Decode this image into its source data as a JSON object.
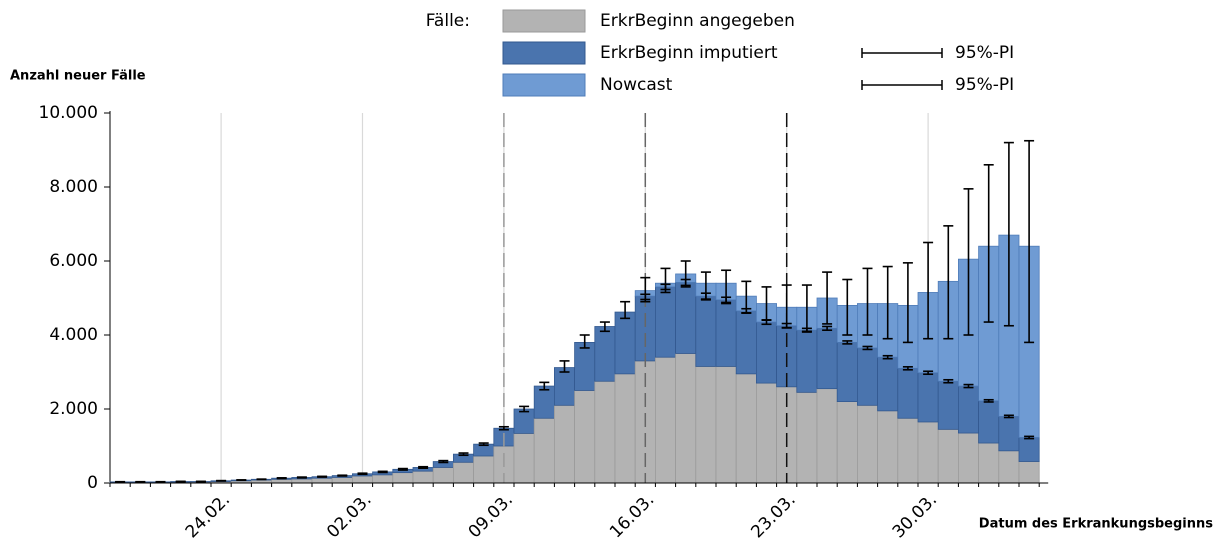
{
  "chart_data": {
    "type": "stacked_bar",
    "y_label": "Anzahl neuer Fälle",
    "x_label": "Datum des Erkrankungsbeginns",
    "legend_title": "Fälle:",
    "categories": [
      null,
      null,
      null,
      null,
      null,
      "24.02.",
      null,
      null,
      null,
      null,
      null,
      null,
      "02.03.",
      null,
      null,
      null,
      null,
      null,
      null,
      "09.03.",
      null,
      null,
      null,
      null,
      null,
      null,
      "16.03.",
      null,
      null,
      null,
      null,
      null,
      null,
      "23.03.",
      null,
      null,
      null,
      null,
      null,
      null,
      "30.03.",
      null,
      null,
      null,
      null,
      null
    ],
    "ylim": [
      0,
      10000
    ],
    "yticks": [
      0,
      {
        "value": 2000,
        "label": "2.000"
      },
      {
        "value": 4000,
        "label": "4.000"
      },
      {
        "value": 6000,
        "label": "6.000"
      },
      {
        "value": 8000,
        "label": "8.000"
      },
      {
        "value": 10000,
        "label": "10.000"
      }
    ],
    "grid": true,
    "series": [
      {
        "name": "ErkrBeginn angegeben",
        "color": "#b3b3b3",
        "values": [
          20,
          20,
          20,
          25,
          30,
          40,
          60,
          80,
          100,
          110,
          130,
          150,
          190,
          220,
          280,
          320,
          420,
          560,
          730,
          1000,
          1340,
          1750,
          2100,
          2500,
          2750,
          2950,
          3300,
          3400,
          3500,
          3150,
          3150,
          2950,
          2700,
          2600,
          2450,
          2550,
          2200,
          2100,
          1950,
          1750,
          1650,
          1450,
          1350,
          1080,
          870,
          580
        ]
      },
      {
        "name": "ErkrBeginn imputiert",
        "color": "#4a74ae",
        "pi_label": "95%-PI",
        "values": [
          10,
          10,
          10,
          15,
          10,
          20,
          20,
          20,
          30,
          40,
          40,
          50,
          60,
          80,
          90,
          100,
          160,
          220,
          320,
          480,
          660,
          870,
          1020,
          1300,
          1480,
          1670,
          1750,
          1900,
          1920,
          1900,
          1800,
          1700,
          1650,
          1650,
          1680,
          1630,
          1600,
          1550,
          1450,
          1350,
          1330,
          1300,
          1270,
          1140,
          930,
          650
        ],
        "pi": [
          [
            25,
            35
          ],
          [
            25,
            35
          ],
          [
            25,
            35
          ],
          [
            35,
            45
          ],
          [
            35,
            45
          ],
          [
            55,
            65
          ],
          [
            75,
            85
          ],
          [
            95,
            105
          ],
          [
            120,
            140
          ],
          [
            140,
            160
          ],
          [
            160,
            180
          ],
          [
            190,
            210
          ],
          [
            235,
            265
          ],
          [
            285,
            315
          ],
          [
            350,
            390
          ],
          [
            400,
            440
          ],
          [
            555,
            605
          ],
          [
            750,
            810
          ],
          [
            1020,
            1080
          ],
          [
            1440,
            1520
          ],
          [
            1930,
            2070
          ],
          [
            2520,
            2720
          ],
          [
            3000,
            3300
          ],
          [
            3650,
            4000
          ],
          [
            4100,
            4350
          ],
          [
            4450,
            4900
          ],
          [
            4960,
            5100
          ],
          [
            5230,
            5370
          ],
          [
            5340,
            5500
          ],
          [
            4970,
            5130
          ],
          [
            4880,
            5020
          ],
          [
            4590,
            4710
          ],
          [
            4290,
            4410
          ],
          [
            4190,
            4310
          ],
          [
            4080,
            4180
          ],
          [
            4130,
            4230
          ],
          [
            3760,
            3840
          ],
          [
            3610,
            3690
          ],
          [
            3360,
            3440
          ],
          [
            3060,
            3140
          ],
          [
            2940,
            3020
          ],
          [
            2710,
            2790
          ],
          [
            2580,
            2660
          ],
          [
            2190,
            2250
          ],
          [
            1770,
            1830
          ],
          [
            1200,
            1260
          ]
        ]
      },
      {
        "name": "Nowcast",
        "color": "#6f9bd3",
        "pi_label": "95%-PI",
        "values": [
          0,
          0,
          0,
          0,
          0,
          0,
          0,
          0,
          0,
          0,
          0,
          0,
          0,
          0,
          0,
          0,
          0,
          0,
          0,
          0,
          0,
          0,
          0,
          0,
          0,
          0,
          150,
          100,
          230,
          350,
          450,
          400,
          500,
          500,
          620,
          820,
          1000,
          1200,
          1450,
          1700,
          2170,
          2700,
          3430,
          4180,
          4900,
          5170
        ],
        "pi": [
          null,
          null,
          null,
          null,
          null,
          null,
          null,
          null,
          null,
          null,
          null,
          null,
          null,
          null,
          null,
          null,
          null,
          null,
          null,
          null,
          null,
          null,
          null,
          null,
          null,
          null,
          [
            4900,
            5550
          ],
          [
            5150,
            5800
          ],
          [
            5300,
            6000
          ],
          [
            4950,
            5700
          ],
          [
            4850,
            5750
          ],
          [
            4600,
            5450
          ],
          [
            4400,
            5300
          ],
          [
            4200,
            5350
          ],
          [
            4100,
            5350
          ],
          [
            4300,
            5700
          ],
          [
            4000,
            5500
          ],
          [
            4000,
            5800
          ],
          [
            3900,
            5850
          ],
          [
            3800,
            5950
          ],
          [
            3900,
            6500
          ],
          [
            3900,
            6950
          ],
          [
            4000,
            7950
          ],
          [
            4350,
            8600
          ],
          [
            4250,
            9200
          ],
          [
            3800,
            9250
          ]
        ]
      }
    ]
  }
}
